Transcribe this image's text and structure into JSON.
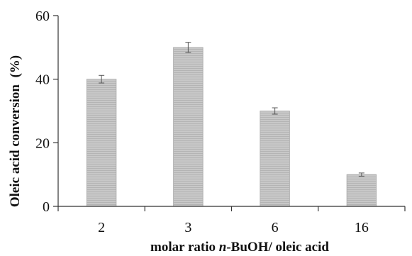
{
  "chart_data": {
    "type": "bar",
    "categories": [
      "2",
      "3",
      "6",
      "16"
    ],
    "values": [
      40,
      50,
      30,
      10
    ],
    "errors": [
      1.2,
      1.6,
      1.0,
      0.5
    ],
    "xlabel_parts": [
      "molar ratio ",
      "n",
      "-BuOH/ oleic acid"
    ],
    "ylabel": "Oleic acid conversion  (%)",
    "ylim": [
      0,
      60
    ],
    "yticks": [
      0,
      20,
      40,
      60
    ],
    "grid": false,
    "legend": "none",
    "bar_color": "#c8c8c8",
    "bar_stroke": "#a8a8a8",
    "axis_color": "#333333",
    "errorbar_color": "#555555"
  }
}
